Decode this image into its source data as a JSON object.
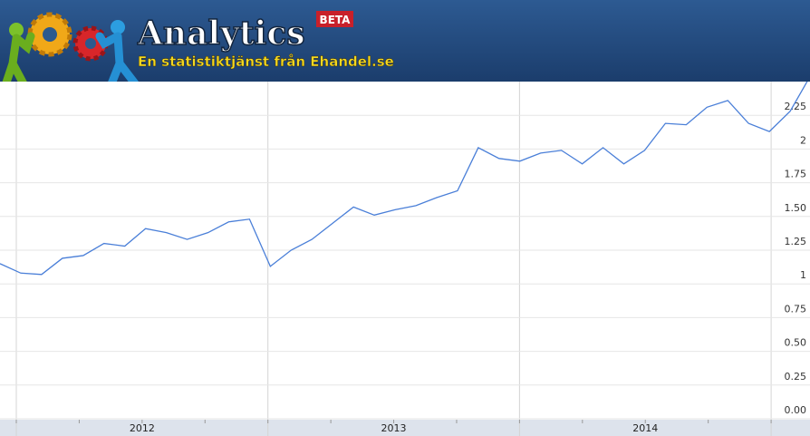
{
  "header": {
    "title": "Analytics",
    "badge": "BETA",
    "subtitle": "En statistiktjänst från Ehandel.se"
  },
  "chart_data": {
    "type": "line",
    "categories": [
      null,
      null,
      null,
      null,
      null,
      null,
      null,
      null,
      null,
      null,
      null,
      null,
      null,
      null,
      null,
      null,
      null,
      null,
      null,
      null,
      null,
      null,
      null,
      null,
      null,
      null,
      null,
      null,
      null,
      null,
      null,
      null,
      null,
      null,
      null,
      null,
      null,
      null,
      null,
      null
    ],
    "x_labels": [
      "2012",
      "2013",
      "2014"
    ],
    "series": [
      {
        "color": "#4a7fd8",
        "values": [
          1.15,
          1.08,
          1.07,
          1.19,
          1.21,
          1.3,
          1.28,
          1.41,
          1.38,
          1.33,
          1.38,
          1.46,
          1.48,
          1.13,
          1.25,
          1.33,
          1.45,
          1.57,
          1.51,
          1.55,
          1.58,
          1.64,
          1.69,
          2.01,
          1.93,
          1.91,
          1.97,
          1.99,
          1.89,
          2.01,
          1.89,
          1.99,
          2.19,
          2.18,
          2.31,
          2.36,
          2.19,
          2.13,
          2.28,
          2.55
        ]
      }
    ],
    "ylim": [
      0,
      2.5
    ],
    "yticks": [
      {
        "value": 0,
        "label": "0.00"
      },
      0.25,
      {
        "value": 0.5,
        "label": "0.50"
      },
      0.75,
      1,
      1.25,
      {
        "value": 1.5,
        "label": "1.50"
      },
      1.75,
      2,
      2.25
    ],
    "grid": true
  }
}
